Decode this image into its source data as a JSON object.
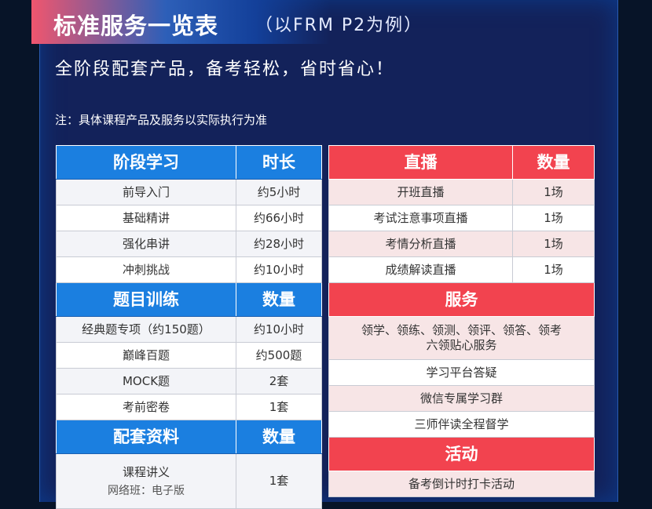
{
  "header": {
    "title": "标准服务一览表",
    "subtitle": "（以FRM P2为例）",
    "slogan": "全阶段配套产品，备考轻松，省时省心！",
    "note": "注：具体课程产品及服务以实际执行为准"
  },
  "left": {
    "study": {
      "headers": [
        "阶段学习",
        "时长"
      ],
      "rows": [
        [
          "前导入门",
          "约5小时"
        ],
        [
          "基础精讲",
          "约66小时"
        ],
        [
          "强化串讲",
          "约28小时"
        ],
        [
          "冲刺挑战",
          "约10小时"
        ]
      ]
    },
    "practice": {
      "headers": [
        "题目训练",
        "数量"
      ],
      "rows": [
        [
          "经典题专项（约150题）",
          "约10小时"
        ],
        [
          "巅峰百题",
          "约500题"
        ],
        [
          "MOCK题",
          "2套"
        ],
        [
          "考前密卷",
          "1套"
        ]
      ]
    },
    "materials": {
      "headers": [
        "配套资料",
        "数量"
      ],
      "rows": [
        {
          "name": "课程讲义",
          "sub": "网络班：电子版",
          "qty": "1套"
        }
      ]
    }
  },
  "right": {
    "live": {
      "headers": [
        "直播",
        "数量"
      ],
      "rows": [
        [
          "开班直播",
          "1场"
        ],
        [
          "考试注意事项直播",
          "1场"
        ],
        [
          "考情分析直播",
          "1场"
        ],
        [
          "成绩解读直播",
          "1场"
        ]
      ]
    },
    "service": {
      "header": "服务",
      "rows": [
        "领学、领练、领测、领评、领答、领考",
        "六领贴心服务",
        "学习平台答疑",
        "微信专属学习群",
        "三师伴读全程督学"
      ]
    },
    "activity": {
      "header": "活动",
      "rows": [
        "备考倒计时打卡活动"
      ]
    }
  }
}
